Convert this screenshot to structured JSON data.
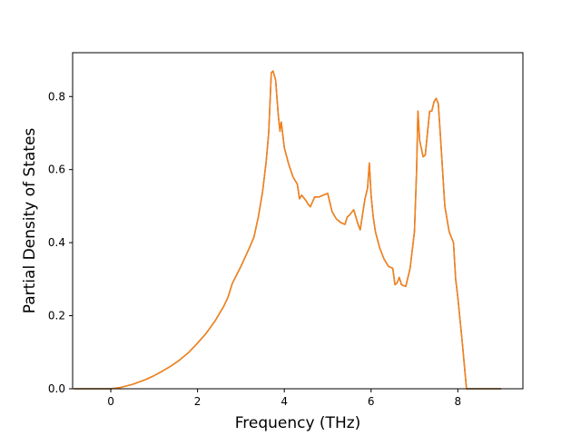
{
  "chart_data": {
    "type": "line",
    "title": "",
    "xlabel": "Frequency (THz)",
    "ylabel": "Partial Density of States",
    "xlim": [
      -0.88,
      9.5
    ],
    "ylim": [
      0.0,
      0.92
    ],
    "xticks": [
      0,
      2,
      4,
      6,
      8
    ],
    "yticks": [
      0.0,
      0.2,
      0.4,
      0.6,
      0.8
    ],
    "xtick_labels": [
      "0",
      "2",
      "4",
      "6",
      "8"
    ],
    "ytick_labels": [
      "0.0",
      "0.2",
      "0.4",
      "0.6",
      "0.8"
    ],
    "grid": false,
    "legend": "none",
    "series": [
      {
        "color": "#1f77b4",
        "x": [
          -0.85,
          0.0,
          0.2,
          0.5,
          0.8,
          1.0,
          1.2,
          1.4,
          1.6,
          1.8,
          2.0,
          2.2,
          2.4,
          2.6,
          2.7,
          2.8,
          3.0,
          3.2,
          3.3,
          3.4,
          3.5,
          3.58,
          3.64,
          3.7,
          3.74,
          3.8,
          3.86,
          3.9,
          3.93,
          3.96,
          4.0,
          4.1,
          4.2,
          4.3,
          4.35,
          4.4,
          4.5,
          4.55,
          4.6,
          4.7,
          4.8,
          4.9,
          5.0,
          5.1,
          5.2,
          5.3,
          5.4,
          5.45,
          5.5,
          5.6,
          5.7,
          5.75,
          5.8,
          5.86,
          5.92,
          5.96,
          6.0,
          6.05,
          6.1,
          6.2,
          6.3,
          6.4,
          6.5,
          6.55,
          6.6,
          6.65,
          6.7,
          6.8,
          6.9,
          7.0,
          7.05,
          7.08,
          7.12,
          7.2,
          7.25,
          7.3,
          7.35,
          7.4,
          7.45,
          7.5,
          7.55,
          7.6,
          7.7,
          7.8,
          7.9,
          7.95,
          8.0,
          8.1,
          8.2,
          8.24,
          8.3,
          8.6,
          9.0
        ],
        "y": [
          0.0,
          0.0,
          0.003,
          0.012,
          0.025,
          0.036,
          0.049,
          0.063,
          0.08,
          0.1,
          0.125,
          0.152,
          0.185,
          0.225,
          0.25,
          0.288,
          0.335,
          0.387,
          0.415,
          0.47,
          0.54,
          0.62,
          0.7,
          0.865,
          0.87,
          0.845,
          0.75,
          0.705,
          0.73,
          0.7,
          0.66,
          0.615,
          0.58,
          0.56,
          0.52,
          0.53,
          0.515,
          0.505,
          0.498,
          0.525,
          0.525,
          0.53,
          0.535,
          0.485,
          0.465,
          0.455,
          0.45,
          0.47,
          0.475,
          0.49,
          0.45,
          0.435,
          0.475,
          0.52,
          0.55,
          0.618,
          0.53,
          0.47,
          0.43,
          0.385,
          0.355,
          0.335,
          0.33,
          0.285,
          0.29,
          0.305,
          0.285,
          0.28,
          0.33,
          0.43,
          0.6,
          0.76,
          0.68,
          0.635,
          0.64,
          0.7,
          0.76,
          0.76,
          0.785,
          0.795,
          0.78,
          0.69,
          0.5,
          0.43,
          0.4,
          0.3,
          0.25,
          0.13,
          0.0,
          0.0,
          0.0,
          0.0,
          0.0
        ]
      },
      {
        "color": "#ff7f0e",
        "x": [
          -0.85,
          0.0,
          0.2,
          0.5,
          0.8,
          1.0,
          1.2,
          1.4,
          1.6,
          1.8,
          2.0,
          2.2,
          2.4,
          2.6,
          2.7,
          2.8,
          3.0,
          3.2,
          3.3,
          3.4,
          3.5,
          3.58,
          3.64,
          3.7,
          3.74,
          3.8,
          3.86,
          3.9,
          3.93,
          3.96,
          4.0,
          4.1,
          4.2,
          4.3,
          4.35,
          4.4,
          4.5,
          4.55,
          4.6,
          4.7,
          4.8,
          4.9,
          5.0,
          5.1,
          5.2,
          5.3,
          5.4,
          5.45,
          5.5,
          5.6,
          5.7,
          5.75,
          5.8,
          5.86,
          5.92,
          5.96,
          6.0,
          6.05,
          6.1,
          6.2,
          6.3,
          6.4,
          6.5,
          6.55,
          6.6,
          6.65,
          6.7,
          6.8,
          6.9,
          7.0,
          7.05,
          7.08,
          7.12,
          7.2,
          7.25,
          7.3,
          7.35,
          7.4,
          7.45,
          7.5,
          7.55,
          7.6,
          7.7,
          7.8,
          7.9,
          7.95,
          8.0,
          8.1,
          8.2,
          8.24,
          8.3,
          8.6,
          9.0
        ],
        "y": [
          0.0,
          0.0,
          0.003,
          0.012,
          0.025,
          0.036,
          0.049,
          0.063,
          0.08,
          0.1,
          0.125,
          0.152,
          0.185,
          0.225,
          0.25,
          0.288,
          0.335,
          0.387,
          0.415,
          0.47,
          0.54,
          0.62,
          0.7,
          0.865,
          0.87,
          0.845,
          0.75,
          0.705,
          0.73,
          0.7,
          0.66,
          0.615,
          0.58,
          0.56,
          0.52,
          0.53,
          0.515,
          0.505,
          0.498,
          0.525,
          0.525,
          0.53,
          0.535,
          0.485,
          0.465,
          0.455,
          0.45,
          0.47,
          0.475,
          0.49,
          0.45,
          0.435,
          0.475,
          0.52,
          0.55,
          0.618,
          0.53,
          0.47,
          0.43,
          0.385,
          0.355,
          0.335,
          0.33,
          0.285,
          0.29,
          0.305,
          0.285,
          0.28,
          0.33,
          0.43,
          0.6,
          0.76,
          0.68,
          0.635,
          0.64,
          0.7,
          0.76,
          0.76,
          0.785,
          0.795,
          0.78,
          0.69,
          0.5,
          0.43,
          0.4,
          0.3,
          0.25,
          0.13,
          0.0,
          0.0,
          0.0,
          0.0,
          0.0
        ]
      }
    ]
  }
}
